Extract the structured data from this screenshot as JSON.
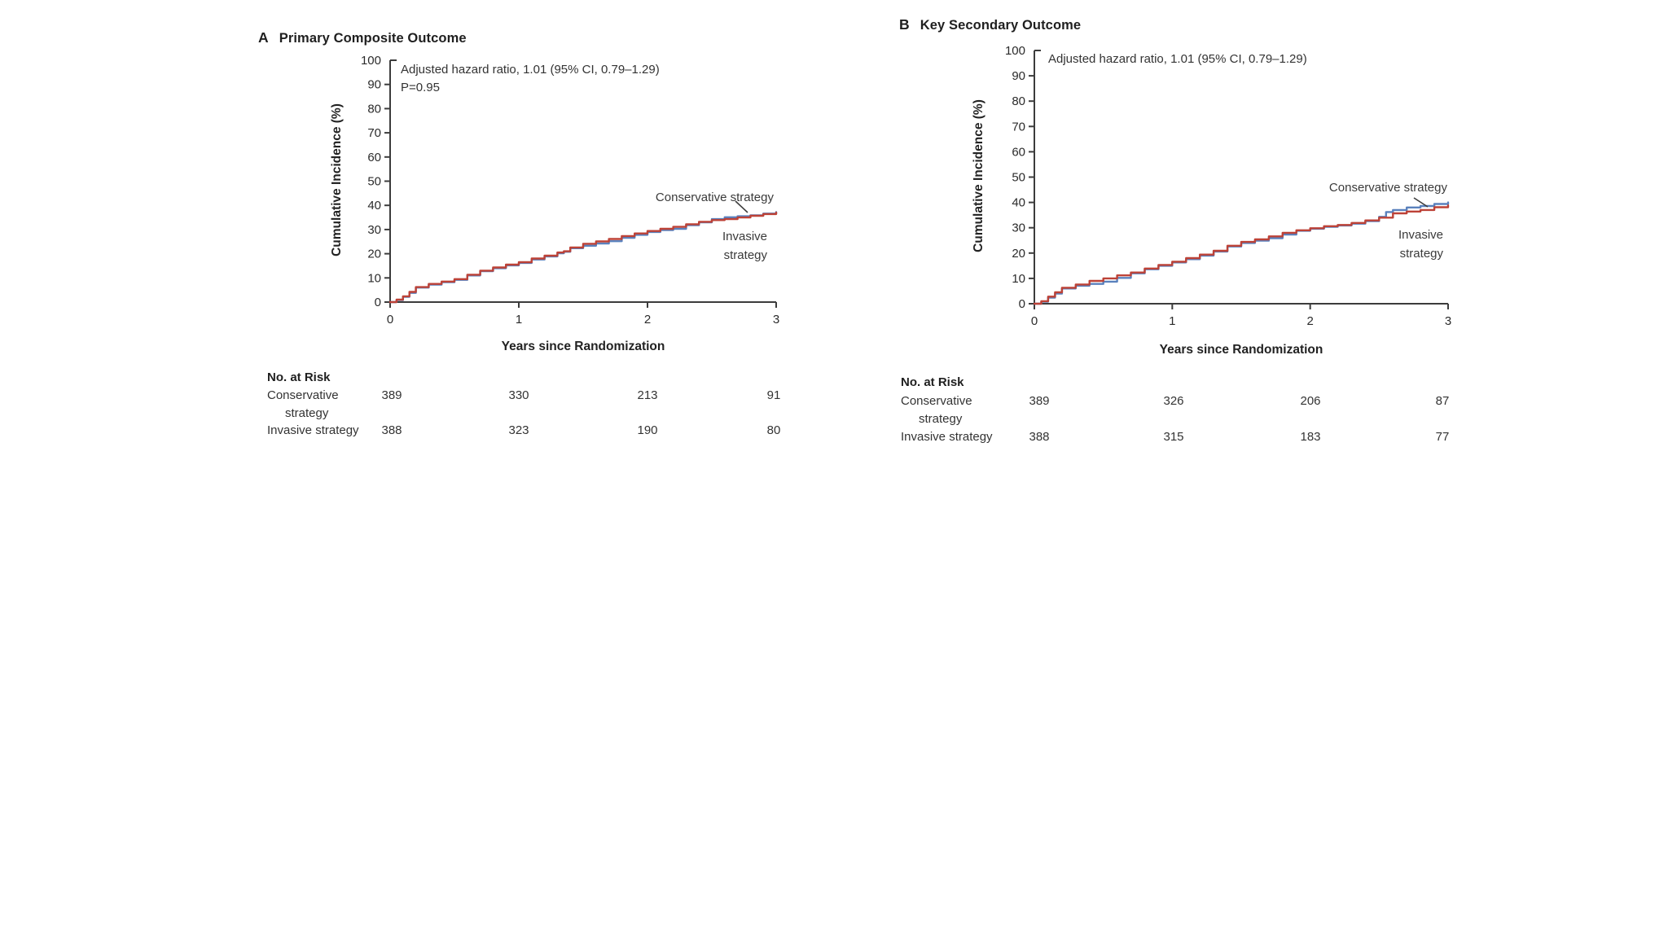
{
  "figure_caption": "",
  "colors": {
    "conservative": "#5a81bd",
    "invasive": "#bd4237",
    "axis": "#3c3c3c",
    "text": "#2b2b2b",
    "background": "#ffffff"
  },
  "chart_data": [
    {
      "type": "line",
      "subtype": "cumulative-incidence-step",
      "panel_letter": "A",
      "title": "Primary Composite Outcome",
      "annotation": [
        "Adjusted hazard ratio, 1.01 (95% CI, 0.79–1.29)",
        "P=0.95"
      ],
      "xlabel": "Years since Randomization",
      "ylabel": "Cumulative Incidence (%)",
      "xlim": [
        0,
        3
      ],
      "ylim": [
        0,
        100
      ],
      "xticks": [
        0,
        1,
        2,
        3
      ],
      "yticks": [
        0,
        10,
        20,
        30,
        40,
        50,
        60,
        70,
        80,
        90,
        100
      ],
      "grid": false,
      "legend_position": "inline-labels",
      "series_labels": {
        "conservative": "Conservative strategy",
        "invasive_line1": "Invasive",
        "invasive_line2": "strategy"
      },
      "series": [
        {
          "name": "Conservative strategy",
          "color": "#5a81bd",
          "points": [
            [
              0,
              0
            ],
            [
              0.05,
              0.8
            ],
            [
              0.1,
              2.2
            ],
            [
              0.15,
              3.8
            ],
            [
              0.2,
              6.0
            ],
            [
              0.3,
              7.2
            ],
            [
              0.4,
              8.2
            ],
            [
              0.5,
              9.2
            ],
            [
              0.6,
              11.0
            ],
            [
              0.7,
              12.8
            ],
            [
              0.8,
              14.0
            ],
            [
              0.9,
              15.2
            ],
            [
              1.0,
              16.2
            ],
            [
              1.1,
              17.6
            ],
            [
              1.2,
              18.9
            ],
            [
              1.3,
              20.2
            ],
            [
              1.35,
              20.8
            ],
            [
              1.4,
              22.3
            ],
            [
              1.5,
              23.3
            ],
            [
              1.6,
              24.2
            ],
            [
              1.7,
              25.2
            ],
            [
              1.8,
              26.6
            ],
            [
              1.9,
              27.8
            ],
            [
              2.0,
              29.0
            ],
            [
              2.1,
              29.8
            ],
            [
              2.2,
              30.3
            ],
            [
              2.3,
              31.8
            ],
            [
              2.4,
              33.0
            ],
            [
              2.5,
              34.3
            ],
            [
              2.6,
              35.1
            ],
            [
              2.7,
              35.5
            ],
            [
              2.8,
              35.9
            ],
            [
              2.9,
              36.6
            ],
            [
              3.0,
              37.2
            ]
          ]
        },
        {
          "name": "Invasive strategy",
          "color": "#bd4237",
          "points": [
            [
              0,
              0
            ],
            [
              0.05,
              1.0
            ],
            [
              0.1,
              2.4
            ],
            [
              0.15,
              4.2
            ],
            [
              0.2,
              6.2
            ],
            [
              0.3,
              7.5
            ],
            [
              0.4,
              8.5
            ],
            [
              0.5,
              9.5
            ],
            [
              0.6,
              11.3
            ],
            [
              0.7,
              13.0
            ],
            [
              0.8,
              14.3
            ],
            [
              0.9,
              15.5
            ],
            [
              1.0,
              16.5
            ],
            [
              1.1,
              18.0
            ],
            [
              1.2,
              19.2
            ],
            [
              1.3,
              20.5
            ],
            [
              1.35,
              21.0
            ],
            [
              1.4,
              22.6
            ],
            [
              1.5,
              24.1
            ],
            [
              1.6,
              25.1
            ],
            [
              1.7,
              26.1
            ],
            [
              1.8,
              27.3
            ],
            [
              1.9,
              28.4
            ],
            [
              2.0,
              29.4
            ],
            [
              2.1,
              30.3
            ],
            [
              2.2,
              31.1
            ],
            [
              2.3,
              32.2
            ],
            [
              2.4,
              33.2
            ],
            [
              2.5,
              33.9
            ],
            [
              2.6,
              34.3
            ],
            [
              2.7,
              35.0
            ],
            [
              2.8,
              35.7
            ],
            [
              2.9,
              36.4
            ],
            [
              3.0,
              37.0
            ]
          ]
        }
      ],
      "no_at_risk": {
        "heading": "No. at Risk",
        "time_points": [
          0,
          1,
          2,
          3
        ],
        "rows": [
          {
            "label": [
              "Conservative",
              "strategy"
            ],
            "values": [
              "389",
              "330",
              "213",
              "91"
            ]
          },
          {
            "label": [
              "Invasive strategy"
            ],
            "values": [
              "388",
              "323",
              "190",
              "80"
            ]
          }
        ]
      }
    },
    {
      "type": "line",
      "subtype": "cumulative-incidence-step",
      "panel_letter": "B",
      "title": "Key Secondary Outcome",
      "annotation": [
        "Adjusted hazard ratio, 1.01 (95% CI, 0.79–1.29)"
      ],
      "xlabel": "Years since Randomization",
      "ylabel": "Cumulative Incidence (%)",
      "xlim": [
        0,
        3
      ],
      "ylim": [
        0,
        100
      ],
      "xticks": [
        0,
        1,
        2,
        3
      ],
      "yticks": [
        0,
        10,
        20,
        30,
        40,
        50,
        60,
        70,
        80,
        90,
        100
      ],
      "grid": false,
      "legend_position": "inline-labels",
      "series_labels": {
        "conservative": "Conservative strategy",
        "invasive_line1": "Invasive",
        "invasive_line2": "strategy"
      },
      "series": [
        {
          "name": "Conservative strategy",
          "color": "#5a81bd",
          "points": [
            [
              0,
              0
            ],
            [
              0.05,
              0.8
            ],
            [
              0.1,
              2.4
            ],
            [
              0.15,
              4.0
            ],
            [
              0.2,
              6.0
            ],
            [
              0.3,
              7.1
            ],
            [
              0.4,
              7.8
            ],
            [
              0.5,
              8.7
            ],
            [
              0.6,
              10.2
            ],
            [
              0.7,
              12.0
            ],
            [
              0.8,
              13.6
            ],
            [
              0.9,
              15.0
            ],
            [
              1.0,
              16.3
            ],
            [
              1.1,
              17.6
            ],
            [
              1.2,
              19.0
            ],
            [
              1.3,
              20.6
            ],
            [
              1.4,
              22.6
            ],
            [
              1.5,
              24.0
            ],
            [
              1.6,
              24.9
            ],
            [
              1.7,
              25.9
            ],
            [
              1.8,
              27.3
            ],
            [
              1.9,
              28.8
            ],
            [
              2.0,
              29.6
            ],
            [
              2.1,
              30.4
            ],
            [
              2.2,
              30.9
            ],
            [
              2.3,
              31.6
            ],
            [
              2.4,
              32.6
            ],
            [
              2.5,
              34.3
            ],
            [
              2.55,
              36.2
            ],
            [
              2.6,
              37.0
            ],
            [
              2.7,
              38.0
            ],
            [
              2.8,
              38.6
            ],
            [
              2.9,
              39.4
            ],
            [
              3.0,
              40.0
            ]
          ]
        },
        {
          "name": "Invasive strategy",
          "color": "#bd4237",
          "points": [
            [
              0,
              0
            ],
            [
              0.05,
              1.0
            ],
            [
              0.1,
              2.8
            ],
            [
              0.15,
              4.5
            ],
            [
              0.2,
              6.3
            ],
            [
              0.3,
              7.6
            ],
            [
              0.4,
              9.0
            ],
            [
              0.5,
              10.0
            ],
            [
              0.6,
              11.2
            ],
            [
              0.7,
              12.3
            ],
            [
              0.8,
              13.9
            ],
            [
              0.9,
              15.3
            ],
            [
              1.0,
              16.6
            ],
            [
              1.1,
              18.0
            ],
            [
              1.2,
              19.4
            ],
            [
              1.3,
              20.9
            ],
            [
              1.4,
              22.9
            ],
            [
              1.5,
              24.4
            ],
            [
              1.6,
              25.4
            ],
            [
              1.7,
              26.6
            ],
            [
              1.8,
              28.0
            ],
            [
              1.9,
              29.0
            ],
            [
              2.0,
              29.8
            ],
            [
              2.1,
              30.6
            ],
            [
              2.2,
              31.1
            ],
            [
              2.3,
              31.9
            ],
            [
              2.4,
              32.9
            ],
            [
              2.5,
              34.0
            ],
            [
              2.6,
              35.7
            ],
            [
              2.7,
              36.4
            ],
            [
              2.8,
              37.0
            ],
            [
              2.9,
              38.1
            ],
            [
              3.0,
              38.8
            ]
          ]
        }
      ],
      "no_at_risk": {
        "heading": "No. at Risk",
        "time_points": [
          0,
          1,
          2,
          3
        ],
        "rows": [
          {
            "label": [
              "Conservative",
              "strategy"
            ],
            "values": [
              "389",
              "326",
              "206",
              "87"
            ]
          },
          {
            "label": [
              "Invasive strategy"
            ],
            "values": [
              "388",
              "315",
              "183",
              "77"
            ]
          }
        ]
      }
    }
  ]
}
